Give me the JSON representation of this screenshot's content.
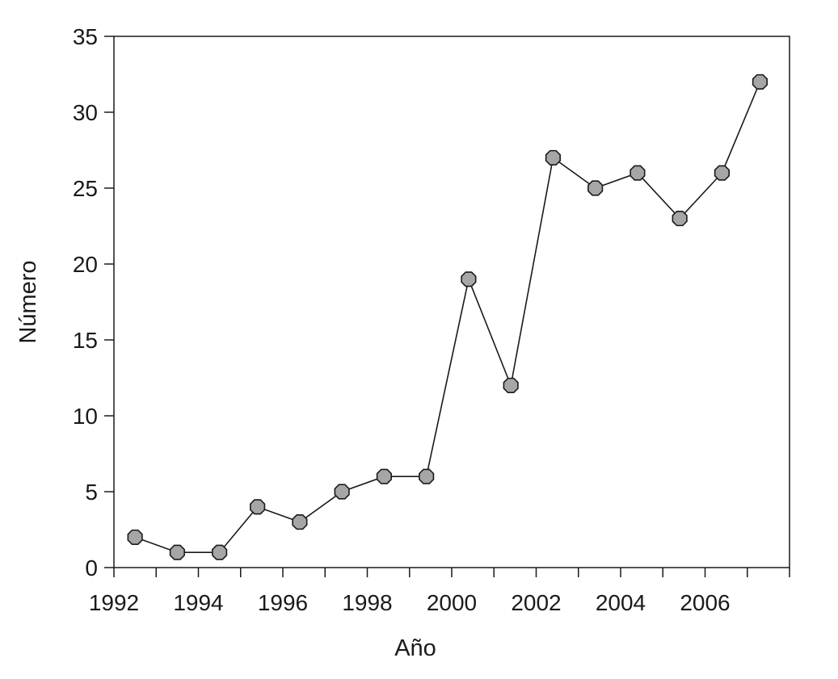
{
  "chart_data": {
    "type": "line",
    "title": "",
    "xlabel": "Año",
    "ylabel": "Número",
    "xlim": [
      1992,
      2008
    ],
    "ylim": [
      0,
      35
    ],
    "x_ticks": [
      1992,
      1994,
      1996,
      1998,
      2000,
      2002,
      2004,
      2006
    ],
    "x_tick_labels": [
      "1992",
      "1994",
      "1996",
      "1998",
      "2000",
      "2002",
      "2004",
      "2006"
    ],
    "y_ticks": [
      0,
      5,
      10,
      15,
      20,
      25,
      30,
      35
    ],
    "y_tick_labels": [
      "0",
      "5",
      "10",
      "15",
      "20",
      "25",
      "30",
      "35"
    ],
    "grid": false,
    "legend": "none",
    "marker": "octagon",
    "marker_color": "#a6a6a6",
    "line_color": "#1a1a1a",
    "series": [
      {
        "x": [
          1992.5,
          1993.5,
          1994.5,
          1995.4,
          1996.4,
          1997.4,
          1998.4,
          1999.4,
          2000.4,
          2001.4,
          2002.4,
          2003.4,
          2004.4,
          2005.4,
          2006.4,
          2007.3
        ],
        "y": [
          2,
          1,
          1,
          4,
          3,
          5,
          6,
          6,
          19,
          12,
          27,
          25,
          26,
          23,
          26,
          32
        ]
      }
    ]
  }
}
